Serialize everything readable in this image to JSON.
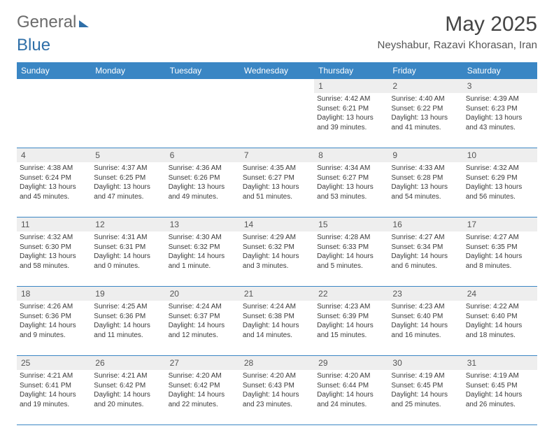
{
  "logo": {
    "text_gray": "General",
    "text_blue": "Blue"
  },
  "title": "May 2025",
  "location": "Neyshabur, Razavi Khorasan, Iran",
  "weekdays": [
    "Sunday",
    "Monday",
    "Tuesday",
    "Wednesday",
    "Thursday",
    "Friday",
    "Saturday"
  ],
  "colors": {
    "header_bg": "#3a86c4",
    "header_text": "#ffffff",
    "daynum_bg": "#eeeeee",
    "border": "#3a86c4",
    "body_text": "#3a3a3a"
  },
  "days": [
    {
      "n": "",
      "sr": "",
      "ss": "",
      "dl": ""
    },
    {
      "n": "",
      "sr": "",
      "ss": "",
      "dl": ""
    },
    {
      "n": "",
      "sr": "",
      "ss": "",
      "dl": ""
    },
    {
      "n": "",
      "sr": "",
      "ss": "",
      "dl": ""
    },
    {
      "n": "1",
      "sr": "Sunrise: 4:42 AM",
      "ss": "Sunset: 6:21 PM",
      "dl": "Daylight: 13 hours and 39 minutes."
    },
    {
      "n": "2",
      "sr": "Sunrise: 4:40 AM",
      "ss": "Sunset: 6:22 PM",
      "dl": "Daylight: 13 hours and 41 minutes."
    },
    {
      "n": "3",
      "sr": "Sunrise: 4:39 AM",
      "ss": "Sunset: 6:23 PM",
      "dl": "Daylight: 13 hours and 43 minutes."
    },
    {
      "n": "4",
      "sr": "Sunrise: 4:38 AM",
      "ss": "Sunset: 6:24 PM",
      "dl": "Daylight: 13 hours and 45 minutes."
    },
    {
      "n": "5",
      "sr": "Sunrise: 4:37 AM",
      "ss": "Sunset: 6:25 PM",
      "dl": "Daylight: 13 hours and 47 minutes."
    },
    {
      "n": "6",
      "sr": "Sunrise: 4:36 AM",
      "ss": "Sunset: 6:26 PM",
      "dl": "Daylight: 13 hours and 49 minutes."
    },
    {
      "n": "7",
      "sr": "Sunrise: 4:35 AM",
      "ss": "Sunset: 6:27 PM",
      "dl": "Daylight: 13 hours and 51 minutes."
    },
    {
      "n": "8",
      "sr": "Sunrise: 4:34 AM",
      "ss": "Sunset: 6:27 PM",
      "dl": "Daylight: 13 hours and 53 minutes."
    },
    {
      "n": "9",
      "sr": "Sunrise: 4:33 AM",
      "ss": "Sunset: 6:28 PM",
      "dl": "Daylight: 13 hours and 54 minutes."
    },
    {
      "n": "10",
      "sr": "Sunrise: 4:32 AM",
      "ss": "Sunset: 6:29 PM",
      "dl": "Daylight: 13 hours and 56 minutes."
    },
    {
      "n": "11",
      "sr": "Sunrise: 4:32 AM",
      "ss": "Sunset: 6:30 PM",
      "dl": "Daylight: 13 hours and 58 minutes."
    },
    {
      "n": "12",
      "sr": "Sunrise: 4:31 AM",
      "ss": "Sunset: 6:31 PM",
      "dl": "Daylight: 14 hours and 0 minutes."
    },
    {
      "n": "13",
      "sr": "Sunrise: 4:30 AM",
      "ss": "Sunset: 6:32 PM",
      "dl": "Daylight: 14 hours and 1 minute."
    },
    {
      "n": "14",
      "sr": "Sunrise: 4:29 AM",
      "ss": "Sunset: 6:32 PM",
      "dl": "Daylight: 14 hours and 3 minutes."
    },
    {
      "n": "15",
      "sr": "Sunrise: 4:28 AM",
      "ss": "Sunset: 6:33 PM",
      "dl": "Daylight: 14 hours and 5 minutes."
    },
    {
      "n": "16",
      "sr": "Sunrise: 4:27 AM",
      "ss": "Sunset: 6:34 PM",
      "dl": "Daylight: 14 hours and 6 minutes."
    },
    {
      "n": "17",
      "sr": "Sunrise: 4:27 AM",
      "ss": "Sunset: 6:35 PM",
      "dl": "Daylight: 14 hours and 8 minutes."
    },
    {
      "n": "18",
      "sr": "Sunrise: 4:26 AM",
      "ss": "Sunset: 6:36 PM",
      "dl": "Daylight: 14 hours and 9 minutes."
    },
    {
      "n": "19",
      "sr": "Sunrise: 4:25 AM",
      "ss": "Sunset: 6:36 PM",
      "dl": "Daylight: 14 hours and 11 minutes."
    },
    {
      "n": "20",
      "sr": "Sunrise: 4:24 AM",
      "ss": "Sunset: 6:37 PM",
      "dl": "Daylight: 14 hours and 12 minutes."
    },
    {
      "n": "21",
      "sr": "Sunrise: 4:24 AM",
      "ss": "Sunset: 6:38 PM",
      "dl": "Daylight: 14 hours and 14 minutes."
    },
    {
      "n": "22",
      "sr": "Sunrise: 4:23 AM",
      "ss": "Sunset: 6:39 PM",
      "dl": "Daylight: 14 hours and 15 minutes."
    },
    {
      "n": "23",
      "sr": "Sunrise: 4:23 AM",
      "ss": "Sunset: 6:40 PM",
      "dl": "Daylight: 14 hours and 16 minutes."
    },
    {
      "n": "24",
      "sr": "Sunrise: 4:22 AM",
      "ss": "Sunset: 6:40 PM",
      "dl": "Daylight: 14 hours and 18 minutes."
    },
    {
      "n": "25",
      "sr": "Sunrise: 4:21 AM",
      "ss": "Sunset: 6:41 PM",
      "dl": "Daylight: 14 hours and 19 minutes."
    },
    {
      "n": "26",
      "sr": "Sunrise: 4:21 AM",
      "ss": "Sunset: 6:42 PM",
      "dl": "Daylight: 14 hours and 20 minutes."
    },
    {
      "n": "27",
      "sr": "Sunrise: 4:20 AM",
      "ss": "Sunset: 6:42 PM",
      "dl": "Daylight: 14 hours and 22 minutes."
    },
    {
      "n": "28",
      "sr": "Sunrise: 4:20 AM",
      "ss": "Sunset: 6:43 PM",
      "dl": "Daylight: 14 hours and 23 minutes."
    },
    {
      "n": "29",
      "sr": "Sunrise: 4:20 AM",
      "ss": "Sunset: 6:44 PM",
      "dl": "Daylight: 14 hours and 24 minutes."
    },
    {
      "n": "30",
      "sr": "Sunrise: 4:19 AM",
      "ss": "Sunset: 6:45 PM",
      "dl": "Daylight: 14 hours and 25 minutes."
    },
    {
      "n": "31",
      "sr": "Sunrise: 4:19 AM",
      "ss": "Sunset: 6:45 PM",
      "dl": "Daylight: 14 hours and 26 minutes."
    }
  ]
}
